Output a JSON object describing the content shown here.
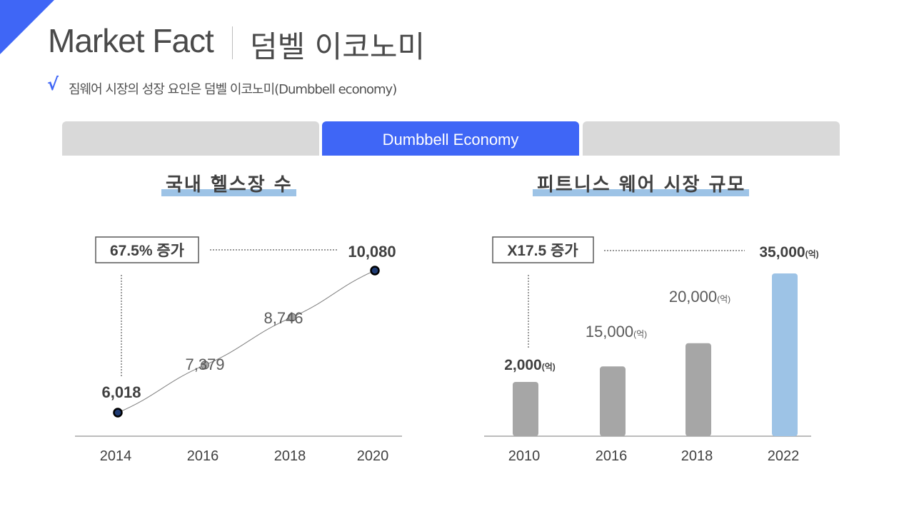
{
  "header": {
    "title_en": "Market Fact",
    "title_ko": "덤벨 이코노미",
    "check_mark": "√",
    "subtitle": "짐웨어 시장의 성장 요인은 덤벨 이코노미(Dumbbell economy)"
  },
  "tabs": [
    {
      "label": ""
    },
    {
      "label": "Dumbbell Economy",
      "active": true
    },
    {
      "label": ""
    }
  ],
  "colors": {
    "accent": "#3f66f6",
    "highlight": "#9dc3e6",
    "bar_gray": "#a6a6a6",
    "bar_blue": "#9dc3e6"
  },
  "chart_data": [
    {
      "type": "line",
      "title": "국내 헬스장 수",
      "categories": [
        "2014",
        "2016",
        "2018",
        "2020"
      ],
      "values": [
        6018,
        7379,
        8746,
        10080
      ],
      "value_labels": [
        "6,018",
        "7,379",
        "8,746",
        "10,080"
      ],
      "callout": "67.5% 증가",
      "grid": false
    },
    {
      "type": "bar",
      "title": "피트니스 웨어 시장 규모",
      "categories": [
        "2010",
        "2016",
        "2018",
        "2022"
      ],
      "values": [
        2000,
        15000,
        20000,
        35000
      ],
      "value_labels": [
        "2,000",
        "15,000",
        "20,000",
        "35,000"
      ],
      "unit": "(억)",
      "callout": "X17.5 증가",
      "highlight_index": 3,
      "grid": false
    }
  ]
}
